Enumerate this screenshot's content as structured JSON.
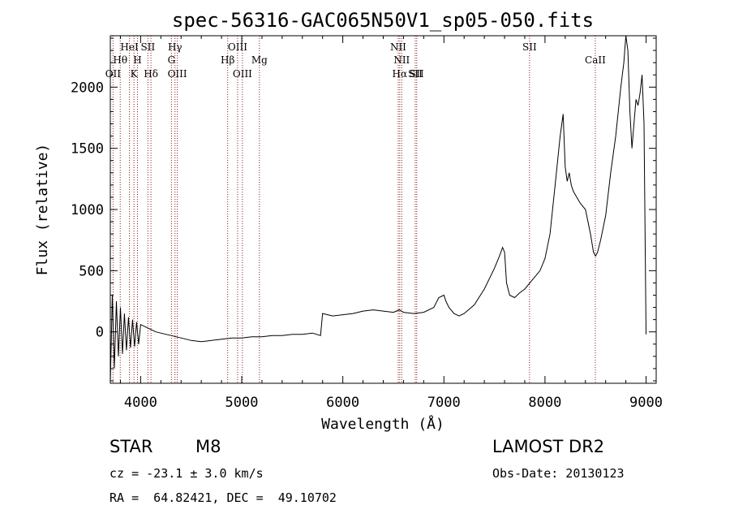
{
  "chart_data": {
    "type": "line",
    "title": "spec-56316-GAC065N50V1_sp05-050.fits",
    "xlabel": "Wavelength (Å)",
    "ylabel": "Flux (relative)",
    "xlim": [
      3700,
      9100
    ],
    "ylim": [
      -420,
      2420
    ],
    "x_ticks": [
      4000,
      5000,
      6000,
      7000,
      8000,
      9000
    ],
    "y_ticks": [
      0,
      500,
      1000,
      1500,
      2000
    ],
    "grid": false,
    "line_color": "#000000",
    "marker_color": "#8b1a1a",
    "lines": [
      {
        "name": "OII",
        "x": 3727,
        "row": 3
      },
      {
        "name": "Hθ",
        "x": 3798,
        "row": 2
      },
      {
        "name": "HeI",
        "x": 3889,
        "row": 1
      },
      {
        "name": "K",
        "x": 3934,
        "row": 3
      },
      {
        "name": "H",
        "x": 3969,
        "row": 2
      },
      {
        "name": "SII",
        "x": 4072,
        "row": 1
      },
      {
        "name": "Hδ",
        "x": 4102,
        "row": 3
      },
      {
        "name": "Hγ",
        "x": 4340,
        "row": 1
      },
      {
        "name": "G",
        "x": 4305,
        "row": 2
      },
      {
        "name": "OIII",
        "x": 4363,
        "row": 3
      },
      {
        "name": "Hβ",
        "x": 4861,
        "row": 2
      },
      {
        "name": "OIII",
        "x": 4959,
        "row": 1
      },
      {
        "name": "OIII",
        "x": 5007,
        "row": 3
      },
      {
        "name": "Mg",
        "x": 5175,
        "row": 2
      },
      {
        "name": "NII",
        "x": 6548,
        "row": 1
      },
      {
        "name": "NII",
        "x": 6583,
        "row": 2
      },
      {
        "name": "Hα",
        "x": 6563,
        "row": 3
      },
      {
        "name": "SII",
        "x": 6716,
        "row": 3
      },
      {
        "name": "SII",
        "x": 6731,
        "row": 3
      },
      {
        "name": "SII",
        "x": 7847,
        "row": 1
      },
      {
        "name": "CaII",
        "x": 8498,
        "row": 2
      }
    ],
    "series": [
      {
        "name": "flux",
        "x": [
          3700,
          3720,
          3740,
          3760,
          3780,
          3800,
          3820,
          3840,
          3860,
          3880,
          3900,
          3920,
          3940,
          3960,
          3980,
          4000,
          4050,
          4100,
          4150,
          4200,
          4250,
          4300,
          4350,
          4400,
          4450,
          4500,
          4600,
          4700,
          4800,
          4900,
          5000,
          5100,
          5200,
          5300,
          5400,
          5500,
          5600,
          5700,
          5780,
          5800,
          5850,
          5900,
          6000,
          6100,
          6200,
          6300,
          6400,
          6500,
          6560,
          6600,
          6700,
          6800,
          6900,
          6950,
          7000,
          7020,
          7050,
          7100,
          7150,
          7200,
          7300,
          7400,
          7500,
          7550,
          7580,
          7600,
          7620,
          7650,
          7700,
          7750,
          7800,
          7850,
          7900,
          7950,
          8000,
          8050,
          8100,
          8150,
          8180,
          8200,
          8220,
          8240,
          8260,
          8280,
          8300,
          8350,
          8400,
          8450,
          8480,
          8500,
          8520,
          8550,
          8600,
          8650,
          8700,
          8750,
          8780,
          8800,
          8820,
          8840,
          8860,
          8880,
          8900,
          8920,
          8940,
          8960,
          8980,
          9000
        ],
        "y": [
          -420,
          300,
          -300,
          250,
          -200,
          200,
          -180,
          150,
          -150,
          120,
          -130,
          100,
          -120,
          80,
          -100,
          60,
          40,
          20,
          0,
          -10,
          -20,
          -30,
          -40,
          -50,
          -60,
          -70,
          -80,
          -70,
          -60,
          -50,
          -50,
          -40,
          -40,
          -30,
          -30,
          -20,
          -20,
          -10,
          -30,
          150,
          140,
          130,
          140,
          150,
          170,
          180,
          170,
          160,
          180,
          160,
          150,
          160,
          200,
          280,
          300,
          250,
          200,
          150,
          130,
          150,
          220,
          350,
          520,
          620,
          690,
          650,
          400,
          300,
          280,
          320,
          350,
          400,
          450,
          500,
          600,
          800,
          1200,
          1600,
          1780,
          1350,
          1230,
          1300,
          1200,
          1150,
          1120,
          1050,
          1000,
          800,
          650,
          620,
          650,
          750,
          950,
          1300,
          1600,
          2000,
          2200,
          2420,
          2300,
          1800,
          1500,
          1700,
          1900,
          1850,
          1950,
          2100,
          1700,
          -20
        ]
      }
    ]
  },
  "info": {
    "object_class": "STAR",
    "subclass": "M8",
    "survey": "LAMOST DR2",
    "cz": "cz = -23.1 ± 3.0 km/s",
    "obs_date": "Obs-Date: 20130123",
    "coords": "RA =  64.82421, DEC =  49.10702"
  }
}
